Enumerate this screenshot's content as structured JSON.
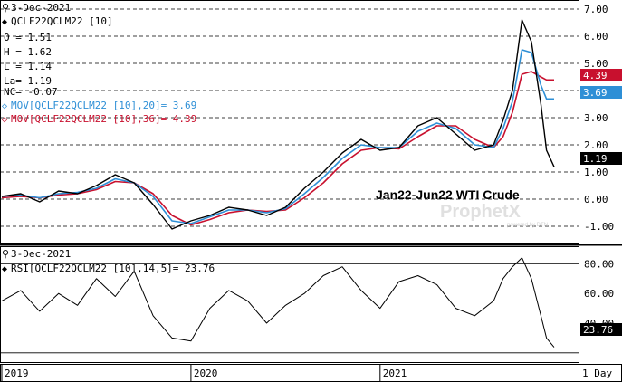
{
  "colors": {
    "price": "#000000",
    "mov20": "#2e8fd6",
    "mov36": "#c8102e",
    "rsi": "#000000",
    "grid": "#000000",
    "badge_text": "#ffffff",
    "watermark": "#c8c8c8"
  },
  "price_pane": {
    "date": "3-Dec-2021",
    "symbol_line": "QCLF22QCLM22 [10]",
    "open_line": "O = 1.51",
    "high_line": "H = 1.62",
    "low_line": "L = 1.14",
    "last_line": "La= 1.19",
    "nc_line": "NC= -0.07",
    "mov20_line": "MOV[QCLF22QCLM22 [10],20]= 3.69",
    "mov36_line": "MOV[QCLF22QCLM22 [10],36]= 4.39",
    "annotation": "Jan22-Jun22 WTI Crude",
    "watermark": "ProphetX",
    "watermark_sub": "powered by DTN",
    "badge_last": "1.19",
    "badge_mov36": "4.39",
    "badge_mov20": "3.69"
  },
  "rsi_pane": {
    "date": "3-Dec-2021",
    "label_line": "RSI[QCLF22QCLM22 [10],14,5]= 23.76",
    "badge_rsi": "23.76"
  },
  "x_axis": {
    "labels": [
      "2019",
      "2020",
      "2021"
    ],
    "interval": "1 Day"
  },
  "chart_data": [
    {
      "type": "line",
      "title": "Jan22-Jun22 WTI Crude",
      "x": [
        2019.0,
        2019.1,
        2019.2,
        2019.3,
        2019.4,
        2019.5,
        2019.6,
        2019.7,
        2019.8,
        2019.9,
        2020.0,
        2020.1,
        2020.2,
        2020.3,
        2020.4,
        2020.5,
        2020.6,
        2020.7,
        2020.8,
        2020.9,
        2021.0,
        2021.1,
        2021.2,
        2021.3,
        2021.4,
        2021.5,
        2021.6,
        2021.65,
        2021.7,
        2021.75,
        2021.8,
        2021.85,
        2021.88,
        2021.92
      ],
      "ylim": [
        -1.5,
        7.0
      ],
      "y_ticks": [
        -1.0,
        0.0,
        1.0,
        2.0,
        3.0,
        4.0,
        5.0,
        6.0,
        7.0
      ],
      "series": [
        {
          "name": "QCLF22QCLM22 [10]",
          "values": [
            0.1,
            0.2,
            -0.1,
            0.3,
            0.2,
            0.5,
            0.9,
            0.6,
            -0.2,
            -1.1,
            -0.8,
            -0.6,
            -0.3,
            -0.4,
            -0.6,
            -0.3,
            0.4,
            1.0,
            1.7,
            2.2,
            1.8,
            1.9,
            2.7,
            3.0,
            2.4,
            1.8,
            2.0,
            2.9,
            4.0,
            6.6,
            5.8,
            3.5,
            1.8,
            1.19
          ]
        },
        {
          "name": "MOV[QCLF22QCLM22 [10],20]",
          "values": [
            0.1,
            0.15,
            0.05,
            0.2,
            0.25,
            0.4,
            0.75,
            0.6,
            0.1,
            -0.8,
            -0.9,
            -0.65,
            -0.4,
            -0.4,
            -0.5,
            -0.35,
            0.2,
            0.8,
            1.5,
            2.0,
            1.9,
            1.9,
            2.5,
            2.8,
            2.6,
            2.0,
            1.9,
            2.6,
            3.6,
            5.5,
            5.4,
            4.2,
            3.69,
            3.69
          ]
        },
        {
          "name": "MOV[QCLF22QCLM22 [10],36]",
          "values": [
            0.05,
            0.1,
            0.05,
            0.15,
            0.2,
            0.35,
            0.65,
            0.6,
            0.2,
            -0.6,
            -0.95,
            -0.75,
            -0.5,
            -0.4,
            -0.45,
            -0.4,
            0.05,
            0.6,
            1.3,
            1.8,
            1.9,
            1.85,
            2.3,
            2.7,
            2.7,
            2.2,
            1.9,
            2.3,
            3.2,
            4.6,
            4.7,
            4.5,
            4.39,
            4.39
          ]
        }
      ]
    },
    {
      "type": "line",
      "title": "RSI[QCLF22QCLM22 [10],14,5]",
      "x": [
        2019.0,
        2019.1,
        2019.2,
        2019.3,
        2019.4,
        2019.5,
        2019.6,
        2019.7,
        2019.8,
        2019.9,
        2020.0,
        2020.1,
        2020.2,
        2020.3,
        2020.4,
        2020.5,
        2020.6,
        2020.7,
        2020.8,
        2020.9,
        2021.0,
        2021.1,
        2021.2,
        2021.3,
        2021.4,
        2021.5,
        2021.6,
        2021.65,
        2021.7,
        2021.75,
        2021.8,
        2021.85,
        2021.88,
        2021.92
      ],
      "ylim": [
        15,
        90
      ],
      "y_ticks": [
        40.0,
        60.0,
        80.0
      ],
      "reference_lines": [
        20,
        80
      ],
      "series": [
        {
          "name": "RSI[QCLF22QCLM22 [10],14,5]",
          "values": [
            55,
            62,
            48,
            60,
            52,
            70,
            58,
            75,
            45,
            30,
            28,
            50,
            62,
            55,
            40,
            52,
            60,
            72,
            78,
            62,
            50,
            68,
            72,
            66,
            50,
            45,
            55,
            70,
            78,
            84,
            70,
            45,
            30,
            23.76
          ]
        }
      ]
    }
  ]
}
